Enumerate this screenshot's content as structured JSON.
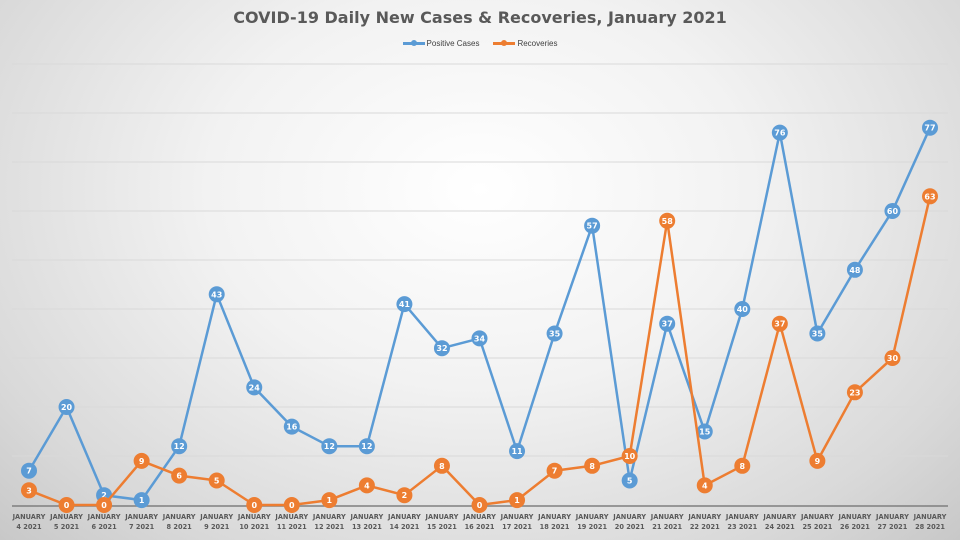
{
  "chart_data": {
    "type": "line",
    "title": "COVID-19 Daily New Cases & Recoveries, January 2021",
    "xlabel": "",
    "ylabel": "",
    "ylim": [
      0,
      90
    ],
    "grid": true,
    "legend_position": "top",
    "categories": [
      [
        "JANUARY",
        "4 2021"
      ],
      [
        "JANUARY",
        "5 2021"
      ],
      [
        "JANUARY",
        "6 2021"
      ],
      [
        "JANUARY",
        "7 2021"
      ],
      [
        "JANUARY",
        "8 2021"
      ],
      [
        "JANUARY",
        "9 2021"
      ],
      [
        "JANUARY",
        "10 2021"
      ],
      [
        "JANUARY",
        "11 2021"
      ],
      [
        "JANUARY",
        "12 2021"
      ],
      [
        "JANUARY",
        "13 2021"
      ],
      [
        "JANUARY",
        "14 2021"
      ],
      [
        "JANUARY",
        "15 2021"
      ],
      [
        "JANUARY",
        "16 2021"
      ],
      [
        "JANUARY",
        "17 2021"
      ],
      [
        "JANUARY",
        "18 2021"
      ],
      [
        "JANUARY",
        "19 2021"
      ],
      [
        "JANUARY",
        "20 2021"
      ],
      [
        "JANUARY",
        "21 2021"
      ],
      [
        "JANUARY",
        "22 2021"
      ],
      [
        "JANUARY",
        "23 2021"
      ],
      [
        "JANUARY",
        "24 2021"
      ],
      [
        "JANUARY",
        "25 2021"
      ],
      [
        "JANUARY",
        "26 2021"
      ],
      [
        "JANUARY",
        "27 2021"
      ],
      [
        "JANUARY",
        "28 2021"
      ]
    ],
    "series": [
      {
        "name": "Positive Cases",
        "color": "#5b9bd5",
        "values": [
          7,
          20,
          2,
          1,
          12,
          43,
          24,
          16,
          12,
          12,
          41,
          32,
          34,
          11,
          35,
          57,
          5,
          37,
          15,
          40,
          76,
          35,
          48,
          60,
          77
        ]
      },
      {
        "name": "Recoveries",
        "color": "#ed7d31",
        "values": [
          3,
          0,
          0,
          9,
          6,
          5,
          0,
          0,
          1,
          4,
          2,
          8,
          0,
          1,
          7,
          8,
          10,
          58,
          4,
          8,
          37,
          9,
          23,
          30,
          63
        ]
      }
    ]
  }
}
